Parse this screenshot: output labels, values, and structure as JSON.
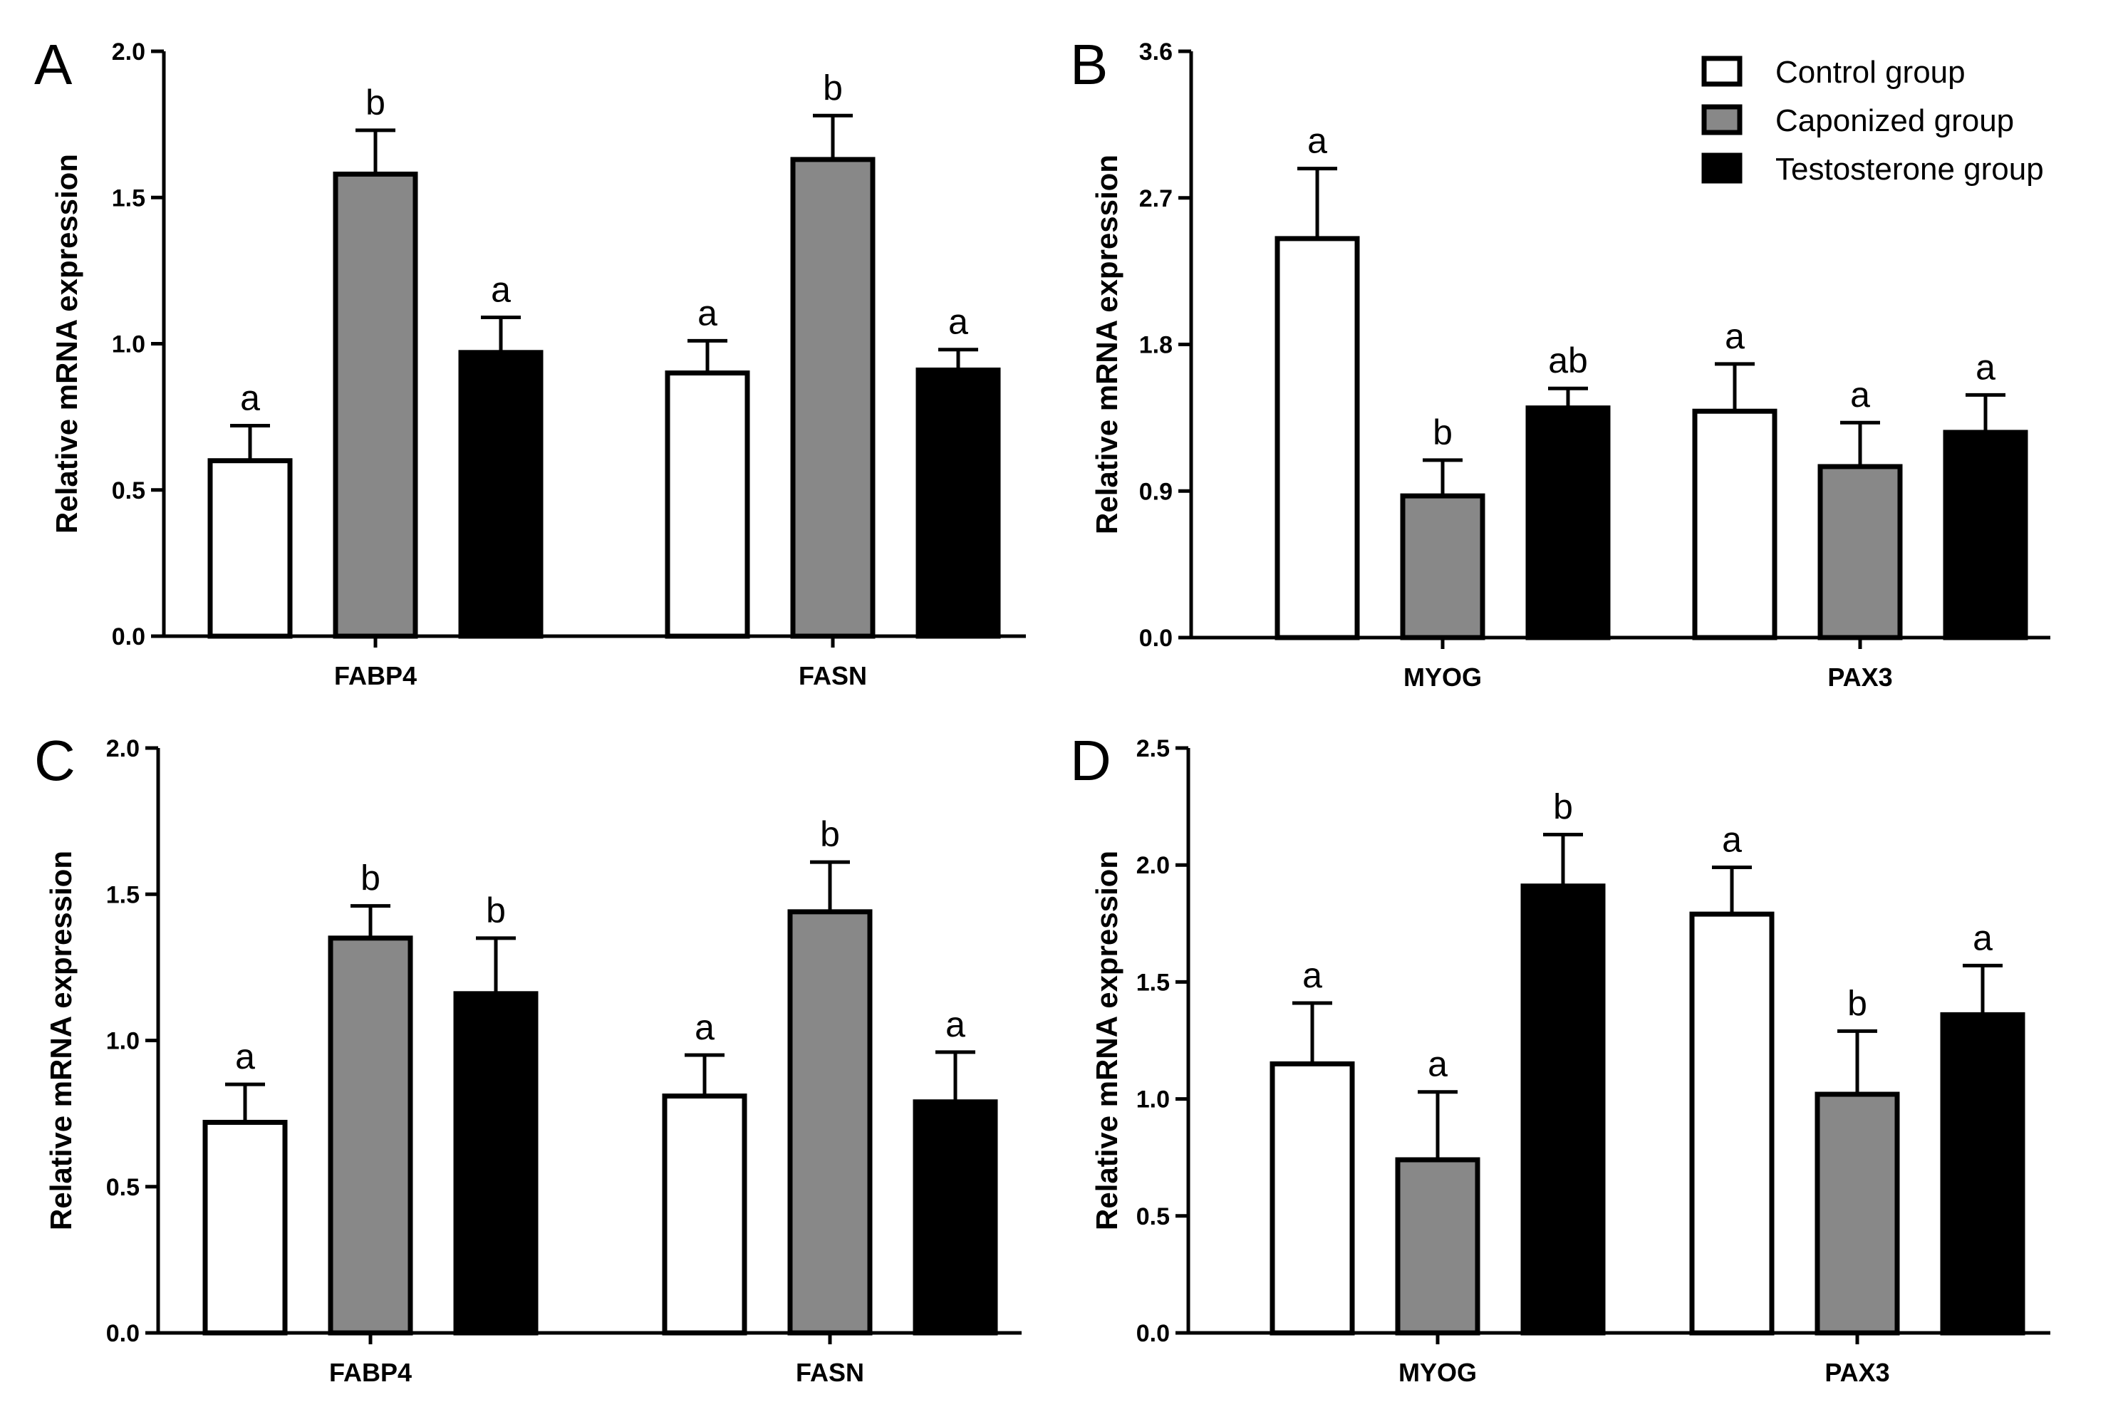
{
  "colors": {
    "Control group": "#ffffff",
    "Caponized group": "#888888",
    "Testosterone group": "#000000"
  },
  "legend": {
    "items": [
      "Control group",
      "Caponized group",
      "Testosterone group"
    ]
  },
  "chart_data": [
    {
      "panel": "A",
      "type": "bar",
      "ylabel": "Relative mRNA expression",
      "ylim": [
        0,
        2.0
      ],
      "yticks": [
        "0.0",
        "0.5",
        "1.0",
        "1.5",
        "2.0"
      ],
      "categories": [
        "FABP4",
        "FASN"
      ],
      "series": [
        {
          "name": "Control group",
          "values": [
            0.6,
            0.9
          ],
          "errors": [
            0.12,
            0.11
          ],
          "labels": [
            "a",
            "a"
          ]
        },
        {
          "name": "Caponized group",
          "values": [
            1.58,
            1.63
          ],
          "errors": [
            0.15,
            0.15
          ],
          "labels": [
            "b",
            "b"
          ]
        },
        {
          "name": "Testosterone group",
          "values": [
            0.97,
            0.91
          ],
          "errors": [
            0.12,
            0.07
          ],
          "labels": [
            "a",
            "a"
          ]
        }
      ]
    },
    {
      "panel": "B",
      "type": "bar",
      "ylabel": "Relative mRNA expression",
      "ylim": [
        0,
        3.6
      ],
      "yticks": [
        "0.0",
        "0.9",
        "1.8",
        "2.7",
        "3.6"
      ],
      "categories": [
        "MYOG",
        "PAX3"
      ],
      "series": [
        {
          "name": "Control group",
          "values": [
            2.45,
            1.39
          ],
          "errors": [
            0.43,
            0.29
          ],
          "labels": [
            "a",
            "a"
          ]
        },
        {
          "name": "Caponized group",
          "values": [
            0.87,
            1.05
          ],
          "errors": [
            0.22,
            0.27
          ],
          "labels": [
            "b",
            "a"
          ]
        },
        {
          "name": "Testosterone group",
          "values": [
            1.41,
            1.26
          ],
          "errors": [
            0.12,
            0.23
          ],
          "labels": [
            "ab",
            "a"
          ]
        }
      ]
    },
    {
      "panel": "C",
      "type": "bar",
      "ylabel": "Relative mRNA expression",
      "ylim": [
        0,
        2.0
      ],
      "yticks": [
        "0.0",
        "0.5",
        "1.0",
        "1.5",
        "2.0"
      ],
      "categories": [
        "FABP4",
        "FASN"
      ],
      "series": [
        {
          "name": "Control group",
          "values": [
            0.72,
            0.81
          ],
          "errors": [
            0.13,
            0.14
          ],
          "labels": [
            "a",
            "a"
          ]
        },
        {
          "name": "Caponized group",
          "values": [
            1.35,
            1.44
          ],
          "errors": [
            0.11,
            0.17
          ],
          "labels": [
            "b",
            "b"
          ]
        },
        {
          "name": "Testosterone group",
          "values": [
            1.16,
            0.79
          ],
          "errors": [
            0.19,
            0.17
          ],
          "labels": [
            "b",
            "a"
          ]
        }
      ]
    },
    {
      "panel": "D",
      "type": "bar",
      "ylabel": "Relative mRNA expression",
      "ylim": [
        0,
        2.5
      ],
      "yticks": [
        "0.0",
        "0.5",
        "1.0",
        "1.5",
        "2.0",
        "2.5"
      ],
      "categories": [
        "MYOG",
        "PAX3"
      ],
      "series": [
        {
          "name": "Control group",
          "values": [
            1.15,
            1.79
          ],
          "errors": [
            0.26,
            0.2
          ],
          "labels": [
            "a",
            "a"
          ]
        },
        {
          "name": "Caponized group",
          "values": [
            0.74,
            1.02
          ],
          "errors": [
            0.29,
            0.27
          ],
          "labels": [
            "a",
            "b"
          ]
        },
        {
          "name": "Testosterone group",
          "values": [
            1.91,
            1.36
          ],
          "errors": [
            0.22,
            0.21
          ],
          "labels": [
            "b",
            "a"
          ]
        }
      ]
    }
  ]
}
